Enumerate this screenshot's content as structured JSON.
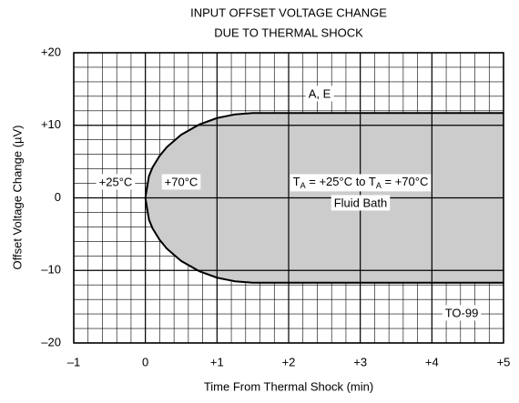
{
  "chart_data": {
    "type": "band",
    "title": [
      "INPUT OFFSET VOLTAGE CHANGE",
      "DUE TO THERMAL SHOCK"
    ],
    "xlabel": "Time From Thermal Shock (min)",
    "ylabel": "Offset Voltage Change (µV)",
    "x": [
      0,
      0.05,
      0.1,
      0.2,
      0.3,
      0.5,
      0.75,
      1.0,
      1.25,
      1.5,
      5
    ],
    "series": [
      {
        "color": "#000000",
        "values": [
          0,
          3.0,
          4.2,
          5.8,
          7.0,
          8.7,
          10.1,
          11.0,
          11.5,
          11.7,
          11.7
        ]
      },
      {
        "color": "#000000",
        "values": [
          0,
          -3.0,
          -4.2,
          -5.8,
          -7.0,
          -8.7,
          -10.1,
          -11.0,
          -11.5,
          -11.7,
          -11.7
        ]
      }
    ],
    "fill": "#cccccc",
    "xlim": [
      -1,
      5
    ],
    "ylim": [
      -20,
      20
    ],
    "xticks": [
      {
        "value": -1,
        "label": "–1"
      },
      0,
      {
        "value": 1,
        "label": "+1"
      },
      {
        "value": 2,
        "label": "+2"
      },
      {
        "value": 3,
        "label": "+3"
      },
      {
        "value": 4,
        "label": "+4"
      },
      {
        "value": 5,
        "label": "+5"
      }
    ],
    "yticks": [
      {
        "value": -20,
        "label": "–20"
      },
      {
        "value": -10,
        "label": "–10"
      },
      0,
      {
        "value": 10,
        "label": "+10"
      },
      {
        "value": 20,
        "label": "+20"
      }
    ],
    "x_minor_step": 0.2,
    "y_minor_step": 2,
    "grid": true,
    "annotations": [
      "A, E",
      "+25°C",
      "+70°C",
      [
        "T",
        "A",
        " = +25°C to T",
        "A",
        " = +70°C"
      ],
      "Fluid Bath",
      "TO-99"
    ]
  }
}
